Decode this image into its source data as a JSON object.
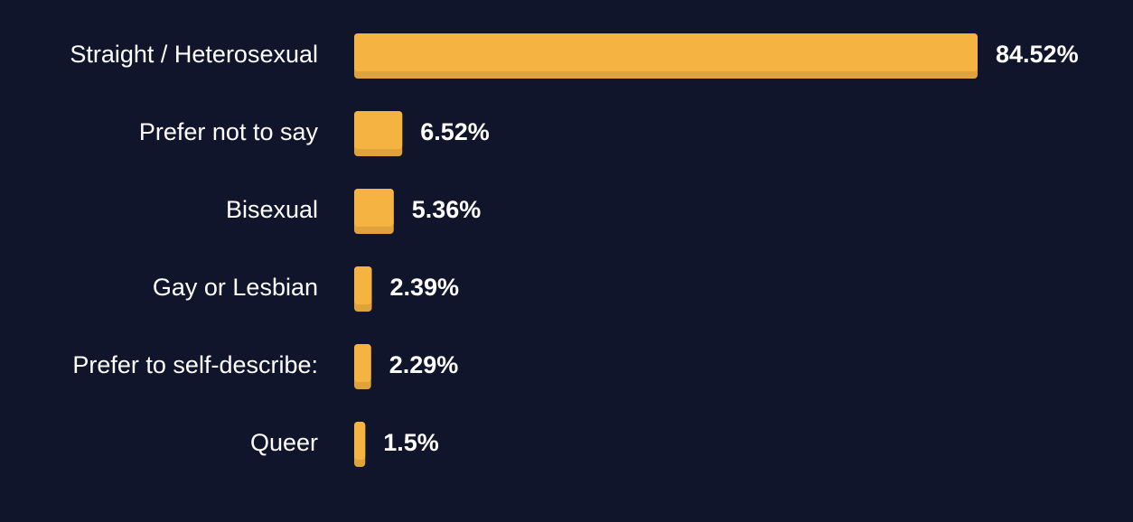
{
  "colors": {
    "background": "#10152b",
    "bar": "#f5b342",
    "bar_shade": "#e0a33c",
    "text": "#ffffff"
  },
  "chart_data": {
    "type": "bar",
    "orientation": "horizontal",
    "categories": [
      "Straight / Heterosexual",
      "Prefer not to say",
      "Bisexual",
      "Gay or Lesbian",
      "Prefer to self-describe:",
      "Queer"
    ],
    "values": [
      84.52,
      6.52,
      5.36,
      2.39,
      2.29,
      1.5
    ],
    "value_labels": [
      "84.52%",
      "6.52%",
      "5.36%",
      "2.39%",
      "2.29%",
      "1.5%"
    ],
    "title": "",
    "xlabel": "",
    "ylabel": "",
    "xlim": [
      0,
      84.52
    ],
    "grid": false,
    "legend": "none"
  }
}
